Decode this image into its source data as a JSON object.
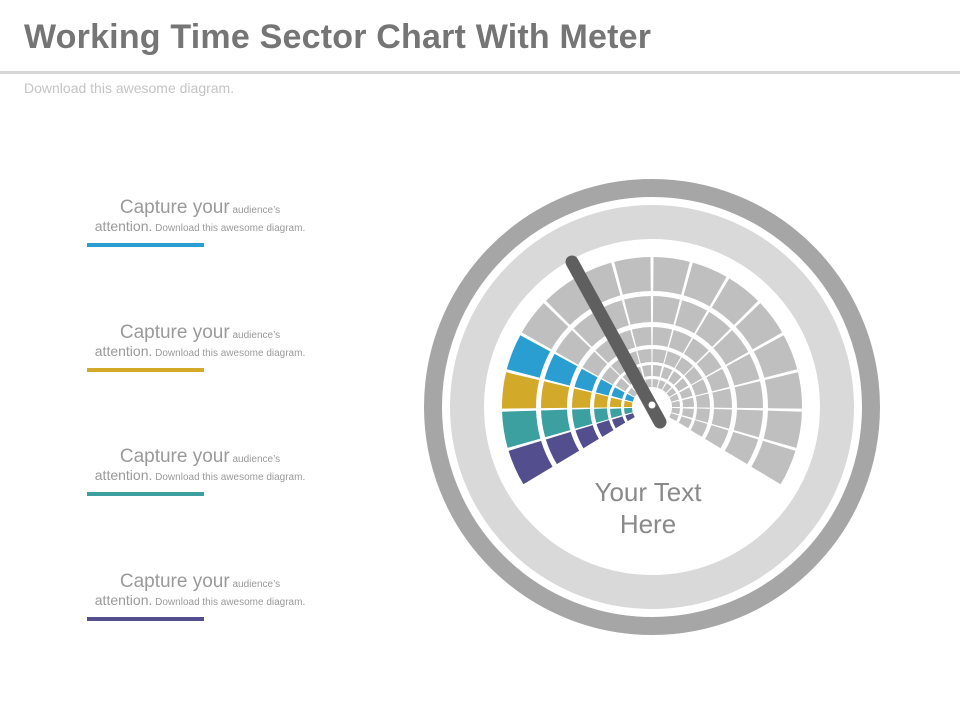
{
  "header": {
    "title": "Working Time Sector Chart With Meter",
    "subtitle": "Download this awesome diagram."
  },
  "captions": [
    {
      "big1": "Capture your",
      "small1": " audience’s",
      "big2": "attention.",
      "small2": " Download this awesome diagram.",
      "color": "#2a9ed1"
    },
    {
      "big1": "Capture your",
      "small1": " audience’s",
      "big2": "attention.",
      "small2": " Download this awesome diagram.",
      "color": "#d3a92a"
    },
    {
      "big1": "Capture your",
      "small1": " audience’s",
      "big2": "attention.",
      "small2": " Download this awesome diagram.",
      "color": "#3c9fa0"
    },
    {
      "big1": "Capture your",
      "small1": " audience’s",
      "big2": "attention.",
      "small2": " Download this awesome diagram.",
      "color": "#534f8e"
    }
  ],
  "meter": {
    "label_line1": "Your Text",
    "label_line2": "Here",
    "outer_ring_color": "#a6a6a6",
    "inner_ring_color": "#d9d9d9",
    "grey_segment_color": "#bfbfbf",
    "needle_color": "#5f5f5f",
    "colored_rays": [
      {
        "color": "#2a9ed1"
      },
      {
        "color": "#d3a92a"
      },
      {
        "color": "#3c9fa0"
      },
      {
        "color": "#534f8e"
      }
    ]
  }
}
